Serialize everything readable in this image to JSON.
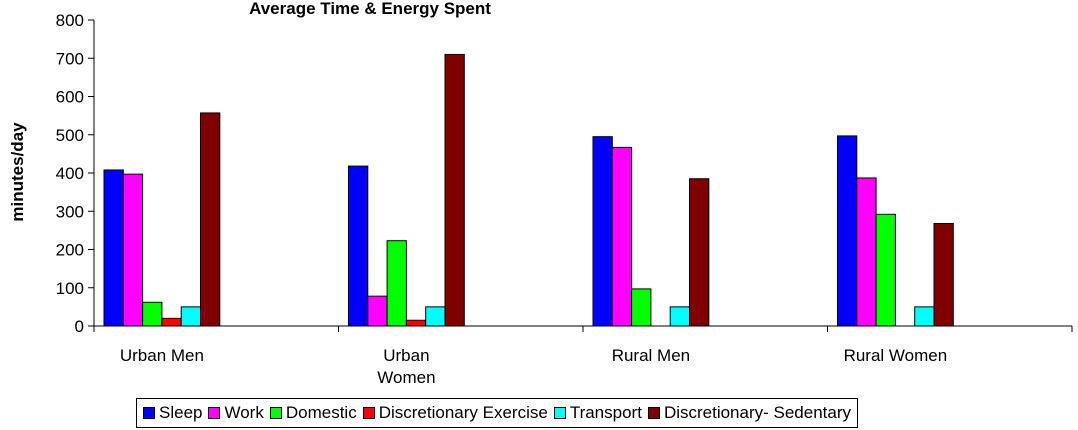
{
  "chart_data": {
    "type": "bar",
    "title": "Average Time & Energy Spent",
    "xlabel": "",
    "ylabel": "minutes/day",
    "ylim": [
      0,
      800
    ],
    "yticks": [
      0,
      100,
      200,
      300,
      400,
      500,
      600,
      700,
      800
    ],
    "categories": [
      "Urban Men",
      "Urban Women",
      "Rural Men",
      "Rural Women"
    ],
    "category_lines": [
      [
        "Urban Men"
      ],
      [
        "Urban",
        "Women"
      ],
      [
        "Rural Men"
      ],
      [
        "Rural Women"
      ]
    ],
    "grid": false,
    "legend_position": "bottom",
    "series": [
      {
        "name": "Sleep",
        "color": "#0000FF",
        "values": [
          408,
          418,
          495,
          497
        ]
      },
      {
        "name": "Work",
        "color": "#FF00FF",
        "values": [
          397,
          78,
          467,
          387
        ]
      },
      {
        "name": "Domestic",
        "color": "#00FF00",
        "values": [
          62,
          223,
          97,
          292
        ]
      },
      {
        "name": "Discretionary Exercise",
        "color": "#FF0000",
        "values": [
          20,
          15,
          0,
          0
        ]
      },
      {
        "name": "Transport",
        "color": "#00FFFF",
        "values": [
          50,
          50,
          50,
          50
        ]
      },
      {
        "name": "Discretionary- Sedentary",
        "color": "#800000",
        "values": [
          557,
          710,
          385,
          268
        ]
      }
    ]
  }
}
